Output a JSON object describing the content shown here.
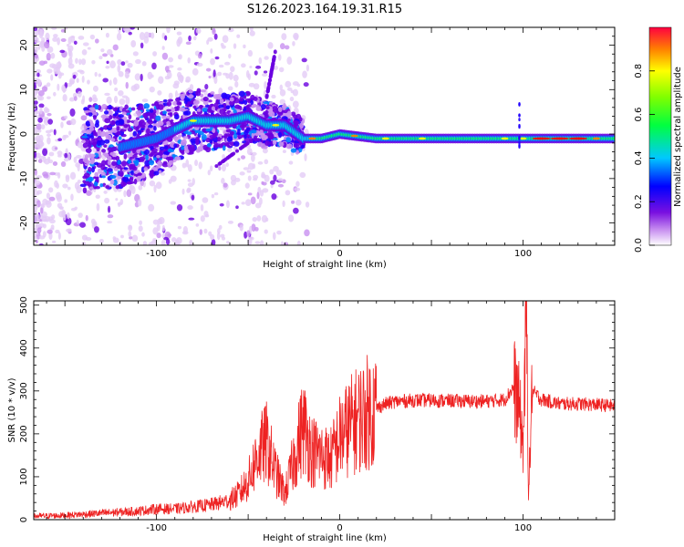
{
  "title": "S126.2023.164.19.31.R15",
  "chart_data": [
    {
      "type": "heatmap",
      "xlabel": "Height of straight line (km)",
      "ylabel": "Frequency (Hz)",
      "xlim": [
        -167,
        150
      ],
      "ylim": [
        -25,
        24
      ],
      "xticks": [
        -100,
        0,
        100
      ],
      "yticks": [
        -20,
        -10,
        0,
        10,
        20
      ],
      "grid": false,
      "ridge": {
        "x": [
          -120,
          -100,
          -80,
          -60,
          -50,
          -40,
          -30,
          -20,
          -10,
          0,
          20,
          50,
          80,
          95,
          100,
          110,
          130,
          150
        ],
        "y": [
          -3,
          -1,
          3,
          3,
          4,
          2,
          2,
          -1,
          -1,
          0,
          -1,
          -1,
          -1,
          -1,
          -1,
          -1,
          -1,
          -1
        ]
      },
      "colorbar": {
        "label": "Normalized spectral amplitude",
        "range": [
          0,
          1
        ],
        "ticks": [
          0.0,
          0.2,
          0.4,
          0.6,
          0.8
        ]
      }
    },
    {
      "type": "line",
      "xlabel": "Height of straight line (km)",
      "ylabel": "SNR (10 * v/v)",
      "xlim": [
        -167,
        150
      ],
      "ylim": [
        0,
        510
      ],
      "xticks": [
        -100,
        0,
        100
      ],
      "yticks": [
        0,
        100,
        200,
        300,
        400,
        500
      ],
      "grid": false,
      "color": "#ee2222",
      "series": [
        {
          "x": [
            -167,
            -150,
            -130,
            -110,
            -100,
            -90,
            -80,
            -70,
            -60,
            -55,
            -50,
            -45,
            -40,
            -35,
            -30,
            -25,
            -20,
            -15,
            -10,
            -5,
            0,
            5,
            10,
            15,
            20,
            25,
            30,
            40,
            50,
            60,
            70,
            80,
            90,
            95,
            98,
            100,
            101,
            102,
            103,
            105,
            110,
            120,
            130,
            140,
            150
          ],
          "y": [
            8,
            10,
            15,
            20,
            25,
            25,
            30,
            35,
            45,
            60,
            90,
            150,
            180,
            110,
            60,
            140,
            220,
            160,
            150,
            140,
            190,
            215,
            235,
            250,
            260,
            270,
            275,
            278,
            278,
            277,
            276,
            276,
            280,
            310,
            260,
            170,
            340,
            470,
            60,
            300,
            280,
            270,
            270,
            268,
            265
          ]
        }
      ]
    }
  ]
}
